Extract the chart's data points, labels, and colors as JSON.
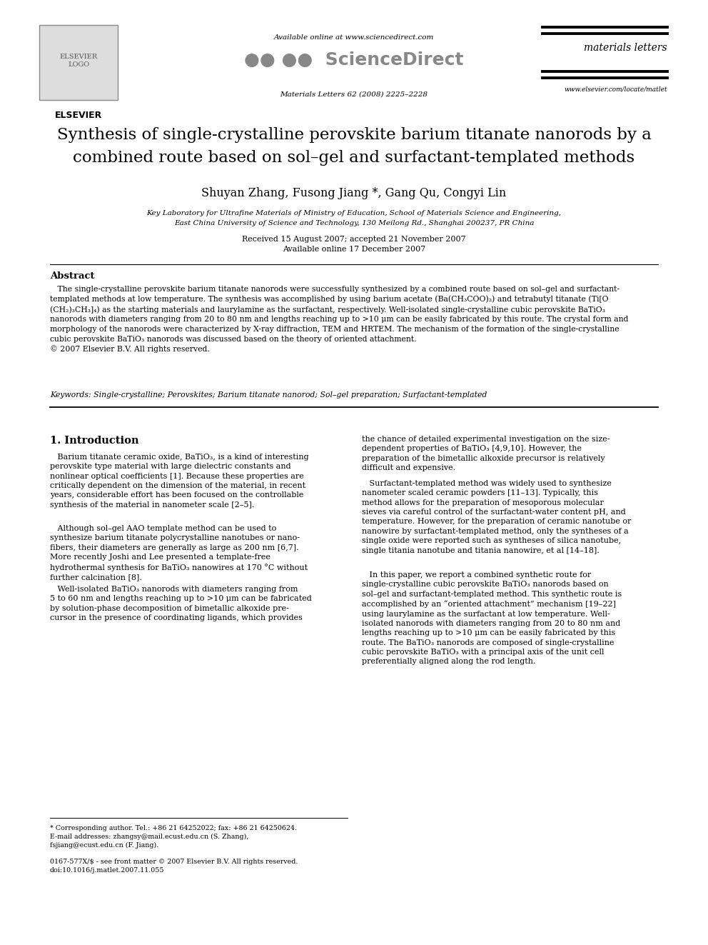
{
  "bg_color": "#ffffff",
  "page_width": 9.92,
  "page_height": 13.23,
  "header": {
    "available_online": "Available online at www.sciencedirect.com",
    "sciencedirect": "ScienceDirect",
    "journal_name": "materials letters",
    "journal_info": "Materials Letters 62 (2008) 2225–2228",
    "website": "www.elsevier.com/locate/matlet"
  },
  "title_line1": "Synthesis of single-crystalline perovskite barium titanate nanorods by a",
  "title_line2": "combined route based on sol–gel and surfactant-templated methods",
  "authors": "Shuyan Zhang, Fusong Jiang *, Gang Qu, Congyi Lin",
  "affiliation_line1": "Key Laboratory for Ultrafine Materials of Ministry of Education, School of Materials Science and Engineering,",
  "affiliation_line2": "East China University of Science and Technology, 130 Meilong Rd., Shanghai 200237, PR China",
  "dates": "Received 15 August 2007; accepted 21 November 2007",
  "available_online_date": "Available online 17 December 2007",
  "abstract_title": "Abstract",
  "abstract_text": "   The single-crystalline perovskite barium titanate nanorods were successfully synthesized by a combined route based on sol–gel and surfactant-\ntemplated methods at low temperature. The synthesis was accomplished by using barium acetate (Ba(CH₃COO)₂) and tetrabutyl titanate (Ti[O\n(CH₂)₃CH₃]₄) as the starting materials and laurylamine as the surfactant, respectively. Well-isolated single-crystalline cubic perovskite BaTiO₃\nnanorods with diameters ranging from 20 to 80 nm and lengths reaching up to >10 μm can be easily fabricated by this route. The crystal form and\nmorphology of the nanorods were characterized by X-ray diffraction, TEM and HRTEM. The mechanism of the formation of the single-crystalline\ncubic perovskite BaTiO₃ nanorods was discussed based on the theory of oriented attachment.\n© 2007 Elsevier B.V. All rights reserved.",
  "keywords": "Keywords: Single-crystalline; Perovskites; Barium titanate nanorod; Sol–gel preparation; Surfactant-templated",
  "section1_title": "1. Introduction",
  "col1_para1": "   Barium titanate ceramic oxide, BaTiO₃, is a kind of interesting\nperovskite type material with large dielectric constants and\nnonlinear optical coefficients [1]. Because these properties are\ncritically dependent on the dimension of the material, in recent\nyears, considerable effort has been focused on the controllable\nsynthesis of the material in nanometer scale [2–5].",
  "col1_para2": "   Although sol–gel AAO template method can be used to\nsynthesize barium titanate polycrystalline nanotubes or nano-\nfibers, their diameters are generally as large as 200 nm [6,7].\nMore recently Joshi and Lee presented a template-free\nhydrothermal synthesis for BaTiO₃ nanowires at 170 °C without\nfurther calcination [8].",
  "col1_para3": "   Well-isolated BaTiO₃ nanorods with diameters ranging from\n5 to 60 nm and lengths reaching up to >10 μm can be fabricated\nby solution-phase decomposition of bimetallic alkoxide pre-\ncursor in the presence of coordinating ligands, which provides",
  "col2_para1": "the chance of detailed experimental investigation on the size-\ndependent properties of BaTiO₃ [4,9,10]. However, the\npreparation of the bimetallic alkoxide precursor is relatively\ndifficult and expensive.",
  "col2_para2": "   Surfactant-templated method was widely used to synthesize\nnanometer scaled ceramic powders [11–13]. Typically, this\nmethod allows for the preparation of mesoporous molecular\nsieves via careful control of the surfactant-water content pH, and\ntemperature. However, for the preparation of ceramic nanotube or\nnanowire by surfactant-templated method, only the syntheses of a\nsingle oxide were reported such as syntheses of silica nanotube,\nsingle titania nanotube and titania nanowire, et al [14–18].",
  "col2_para3": "   In this paper, we report a combined synthetic route for\nsingle-crystalline cubic perovskite BaTiO₃ nanorods based on\nsol–gel and surfactant-templated method. This synthetic route is\naccomplished by an “oriented attachment” mechanism [19–22]\nusing laurylamine as the surfactant at low temperature. Well-\nisolated nanorods with diameters ranging from 20 to 80 nm and\nlengths reaching up to >10 μm can be easily fabricated by this\nroute. The BaTiO₃ nanorods are composed of single-crystalline\ncubic perovskite BaTiO₃ with a principal axis of the unit cell\npreferentially aligned along the rod length.",
  "footnote1": "* Corresponding author. Tel.: +86 21 64252022; fax: +86 21 64250624.",
  "footnote2": "E-mail addresses: zhangsy@mail.ecust.edu.cn (S. Zhang),",
  "footnote3": "fsjiang@ecust.edu.cn (F. Jiang).",
  "footnote4": "0167-577X/$ - see front matter © 2007 Elsevier B.V. All rights reserved.",
  "footnote5": "doi:10.1016/j.matlet.2007.11.055"
}
